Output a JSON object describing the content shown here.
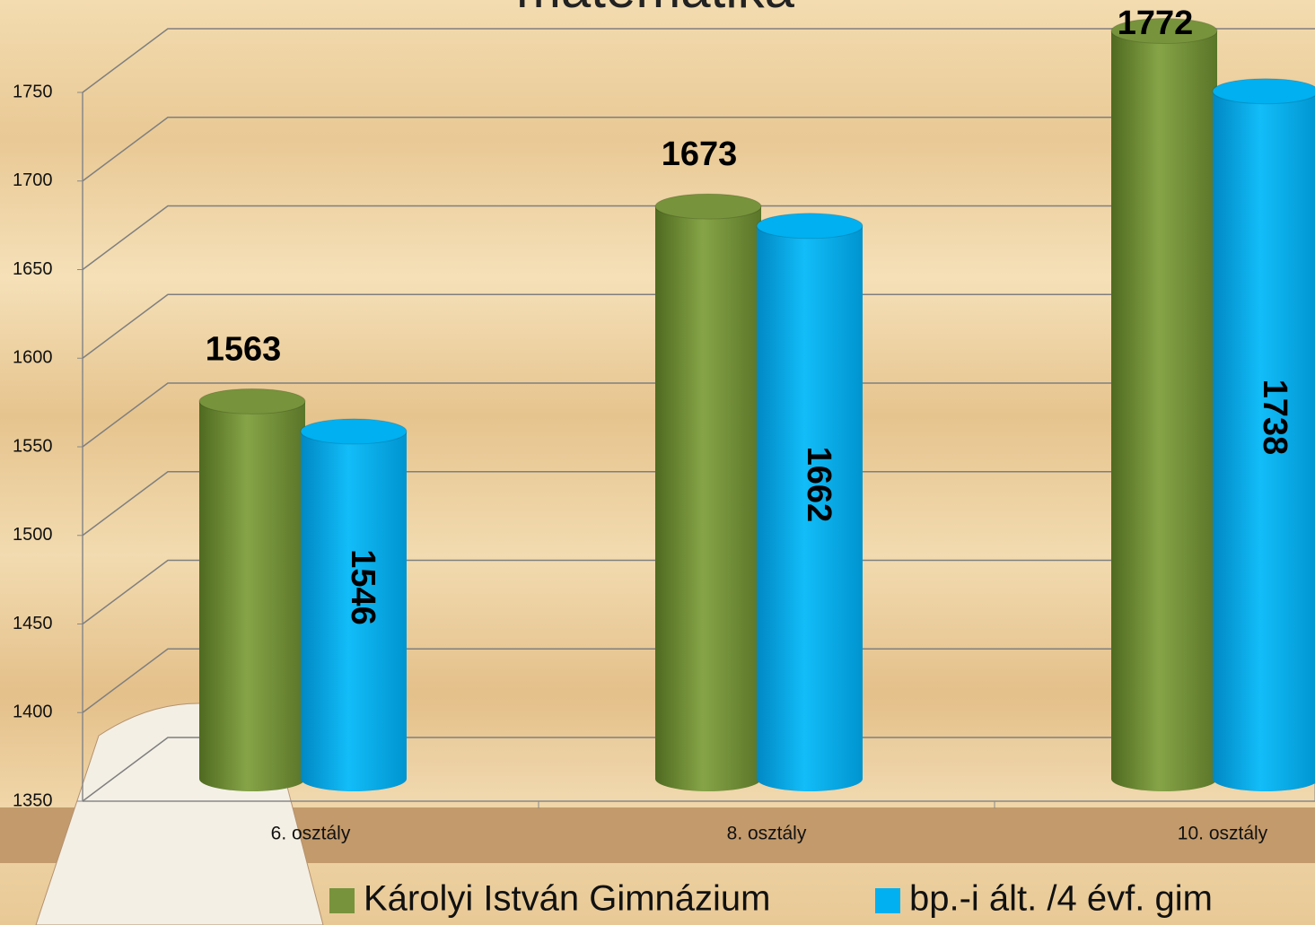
{
  "chart_data": {
    "type": "bar",
    "title": "matematika",
    "categories": [
      "6. osztály",
      "8. osztály",
      "10. osztály"
    ],
    "series": [
      {
        "name": "Károlyi István Gimnázium",
        "color": "#77933c",
        "values": [
          1563,
          1673,
          1772
        ]
      },
      {
        "name": "bp.-i ált. /4 évf. gim",
        "color": "#00b0f0",
        "values": [
          1546,
          1662,
          1738
        ]
      }
    ],
    "ylim": [
      1350,
      1750
    ],
    "yticks": [
      1350,
      1400,
      1450,
      1500,
      1550,
      1600,
      1650,
      1700,
      1750
    ],
    "grid": true
  }
}
